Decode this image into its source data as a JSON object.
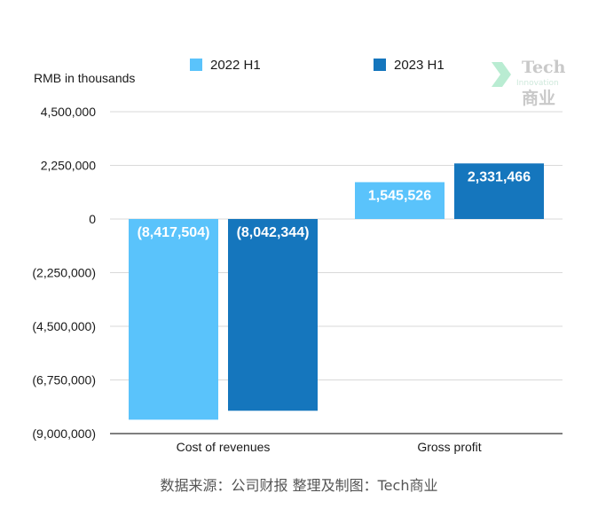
{
  "chart_data": {
    "type": "bar",
    "categories": [
      "Cost of revenues",
      "Gross profit"
    ],
    "series": [
      {
        "name": "2022 H1",
        "color": "#5ac3fb",
        "values": [
          -8417504,
          1545526
        ],
        "labels": [
          "(8,417,504)",
          "1,545,526"
        ]
      },
      {
        "name": "2023 H1",
        "color": "#1576bd",
        "values": [
          -8042344,
          2331466
        ],
        "labels": [
          "(8,042,344)",
          "2,331,466"
        ]
      }
    ],
    "ylabel": "RMB in thousands",
    "ylim": [
      -9000000,
      4500000
    ],
    "yticks": [
      4500000,
      2250000,
      0,
      -2250000,
      -4500000,
      -6750000,
      -9000000
    ],
    "ytick_labels": [
      "4,500,000",
      "2,250,000",
      "0",
      "(2,250,000)",
      "(4,500,000)",
      "(6,750,000)",
      "(9,000,000)"
    ],
    "grid": true,
    "legend_position": "top"
  },
  "source_text": "数据来源：公司财报 整理及制图：Tech商业",
  "watermark": {
    "line1": "Tech",
    "line2": "Innovation",
    "line3": "商业"
  }
}
